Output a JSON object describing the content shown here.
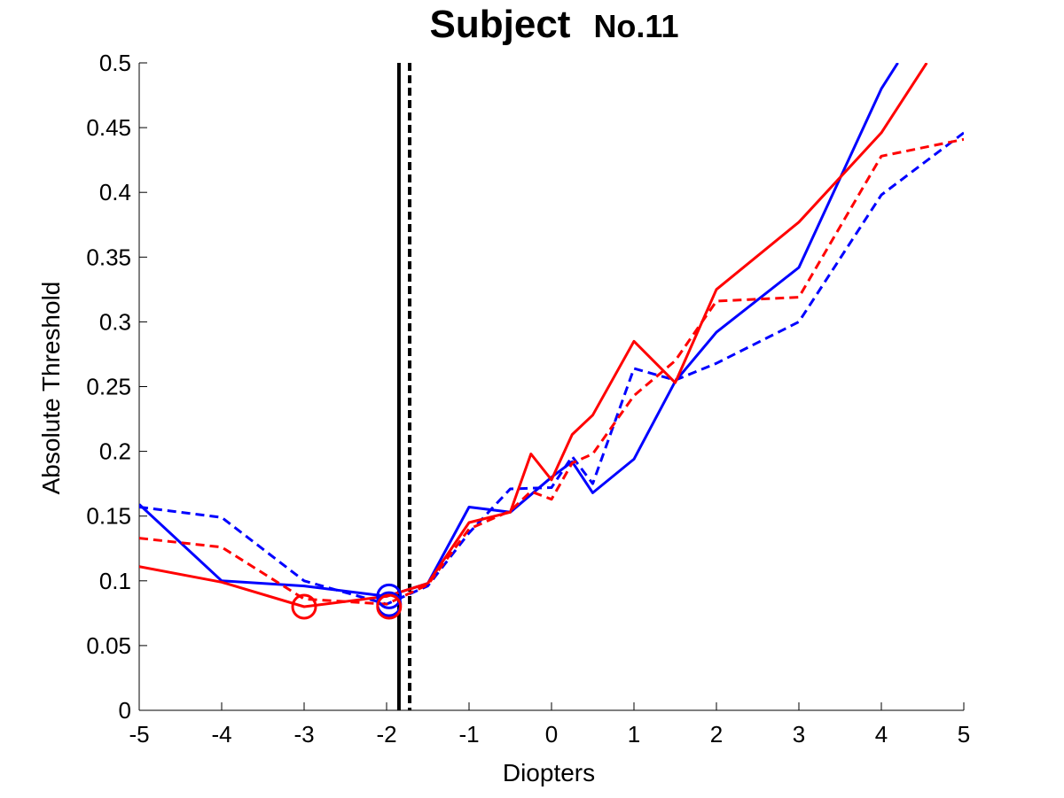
{
  "chart_data": {
    "type": "line",
    "title": "Subject",
    "title_suffix": "No.11",
    "xlabel": "Diopters",
    "ylabel": "Absolute Threshold",
    "xlim": [
      -5,
      5
    ],
    "ylim": [
      0,
      0.5
    ],
    "x_ticks": [
      -5,
      -4,
      -3,
      -2,
      -1,
      0,
      1,
      2,
      3,
      4,
      5
    ],
    "x_tick_labels": [
      "-5",
      "-4",
      "-3",
      "-2",
      "-1",
      "0",
      "1",
      "2",
      "3",
      "4",
      "5"
    ],
    "y_ticks": [
      0,
      0.05,
      0.1,
      0.15,
      0.2,
      0.25,
      0.3,
      0.35,
      0.4,
      0.45,
      0.5
    ],
    "y_tick_labels": [
      "0",
      "0.05",
      "0.1",
      "0.15",
      "0.2",
      "0.25",
      "0.3",
      "0.35",
      "0.4",
      "0.45",
      "0.5"
    ],
    "grid": false,
    "legend": "none",
    "series": [
      {
        "color": "#0000ff",
        "dash": "solid",
        "x": [
          -5,
          -4,
          -3,
          -2,
          -1.5,
          -1,
          -0.5,
          0,
          0.25,
          0.5,
          1,
          1.5,
          2,
          3,
          4,
          4.2
        ],
        "y": [
          0.159,
          0.1,
          0.096,
          0.088,
          0.098,
          0.157,
          0.153,
          0.18,
          0.192,
          0.168,
          0.194,
          0.254,
          0.292,
          0.342,
          0.48,
          0.5
        ]
      },
      {
        "color": "#0000ff",
        "dash": "dashed",
        "x": [
          -5,
          -4,
          -3,
          -2,
          -1.5,
          -1,
          -0.5,
          0,
          0.25,
          0.5,
          1,
          1.5,
          2,
          3,
          4,
          5
        ],
        "y": [
          0.157,
          0.149,
          0.1,
          0.082,
          0.096,
          0.137,
          0.171,
          0.172,
          0.196,
          0.175,
          0.264,
          0.255,
          0.268,
          0.3,
          0.398,
          0.446
        ]
      },
      {
        "color": "#ff0000",
        "dash": "solid",
        "x": [
          -5,
          -4,
          -3,
          -2,
          -1.5,
          -1,
          -0.5,
          -0.25,
          0,
          0.25,
          0.5,
          1,
          1.5,
          2,
          3,
          4,
          4.55
        ],
        "y": [
          0.111,
          0.099,
          0.08,
          0.088,
          0.098,
          0.145,
          0.153,
          0.198,
          0.178,
          0.213,
          0.228,
          0.285,
          0.253,
          0.325,
          0.377,
          0.446,
          0.5
        ]
      },
      {
        "color": "#ff0000",
        "dash": "dashed",
        "x": [
          -5,
          -4,
          -3,
          -2,
          -1.5,
          -1,
          -0.5,
          -0.25,
          0,
          0.25,
          0.5,
          1,
          1.5,
          2,
          3,
          4,
          5
        ],
        "y": [
          0.133,
          0.126,
          0.086,
          0.082,
          0.097,
          0.14,
          0.154,
          0.169,
          0.163,
          0.191,
          0.198,
          0.243,
          0.27,
          0.316,
          0.319,
          0.428,
          0.441
        ]
      }
    ],
    "markers": [
      {
        "color": "#0000ff",
        "shape": "circle",
        "x": -1.97,
        "y": 0.088
      },
      {
        "color": "#0000ff",
        "shape": "circle",
        "x": -1.97,
        "y": 0.082
      },
      {
        "color": "#ff0000",
        "shape": "circle",
        "x": -3,
        "y": 0.08
      },
      {
        "color": "#ff0000",
        "shape": "circle",
        "x": -1.97,
        "y": 0.08
      }
    ],
    "vertical_lines": [
      {
        "x": -1.85,
        "color": "#000000",
        "dash": "solid"
      },
      {
        "x": -1.72,
        "color": "#000000",
        "dash": "dashed"
      }
    ]
  }
}
